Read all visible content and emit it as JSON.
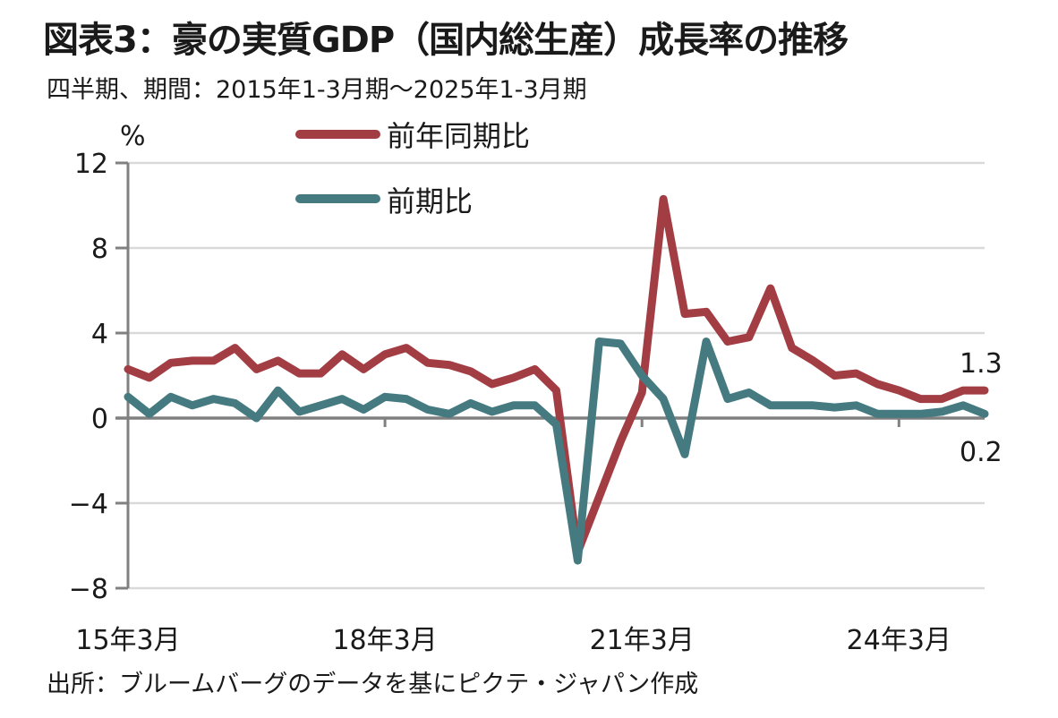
{
  "header": {
    "title": "図表3：豪の実質GDP（国内総生産）成長率の推移",
    "subtitle": "四半期、期間：2015年1-3月期～2025年1-3月期"
  },
  "footer": {
    "source": "出所：ブルームバーグのデータを基にピクテ・ジャパン作成"
  },
  "chart_data": {
    "type": "line",
    "title": "図表3：豪の実質GDP（国内総生産）成長率の推移",
    "subtitle": "四半期、期間：2015年1-3月期～2025年1-3月期",
    "ylabel": "%",
    "ylim": [
      -8,
      12
    ],
    "yticks": [
      "12",
      "8",
      "4",
      "0",
      "-4",
      "-8"
    ],
    "ytick_values": [
      12,
      8,
      4,
      0,
      -4,
      -8
    ],
    "xticks": [
      "15年3月",
      "18年3月",
      "21年3月",
      "24年3月"
    ],
    "xtick_index": [
      0,
      12,
      24,
      36
    ],
    "grid": true,
    "legend_position": "top-center",
    "series": [
      {
        "name": "前年同期比",
        "color": "#a33d44",
        "end_label": "1.3",
        "values": [
          2.3,
          1.9,
          2.6,
          2.7,
          2.7,
          3.3,
          2.3,
          2.7,
          2.1,
          2.1,
          3.0,
          2.3,
          3.0,
          3.3,
          2.6,
          2.5,
          2.2,
          1.6,
          1.9,
          2.3,
          1.3,
          -6.3,
          -3.7,
          -1.1,
          1.2,
          10.3,
          4.9,
          5.0,
          3.6,
          3.8,
          6.1,
          3.3,
          2.7,
          2.0,
          2.1,
          1.6,
          1.3,
          0.9,
          0.9,
          1.3,
          1.3
        ]
      },
      {
        "name": "前期比",
        "color": "#457a80",
        "end_label": "0.2",
        "values": [
          1.0,
          0.2,
          1.0,
          0.6,
          0.9,
          0.7,
          0.0,
          1.3,
          0.3,
          0.6,
          0.9,
          0.4,
          1.0,
          0.9,
          0.4,
          0.2,
          0.7,
          0.3,
          0.6,
          0.6,
          -0.3,
          -6.7,
          3.6,
          3.5,
          2.0,
          0.9,
          -1.7,
          3.6,
          0.9,
          1.2,
          0.6,
          0.6,
          0.6,
          0.5,
          0.6,
          0.2,
          0.2,
          0.2,
          0.3,
          0.6,
          0.2
        ]
      }
    ]
  }
}
